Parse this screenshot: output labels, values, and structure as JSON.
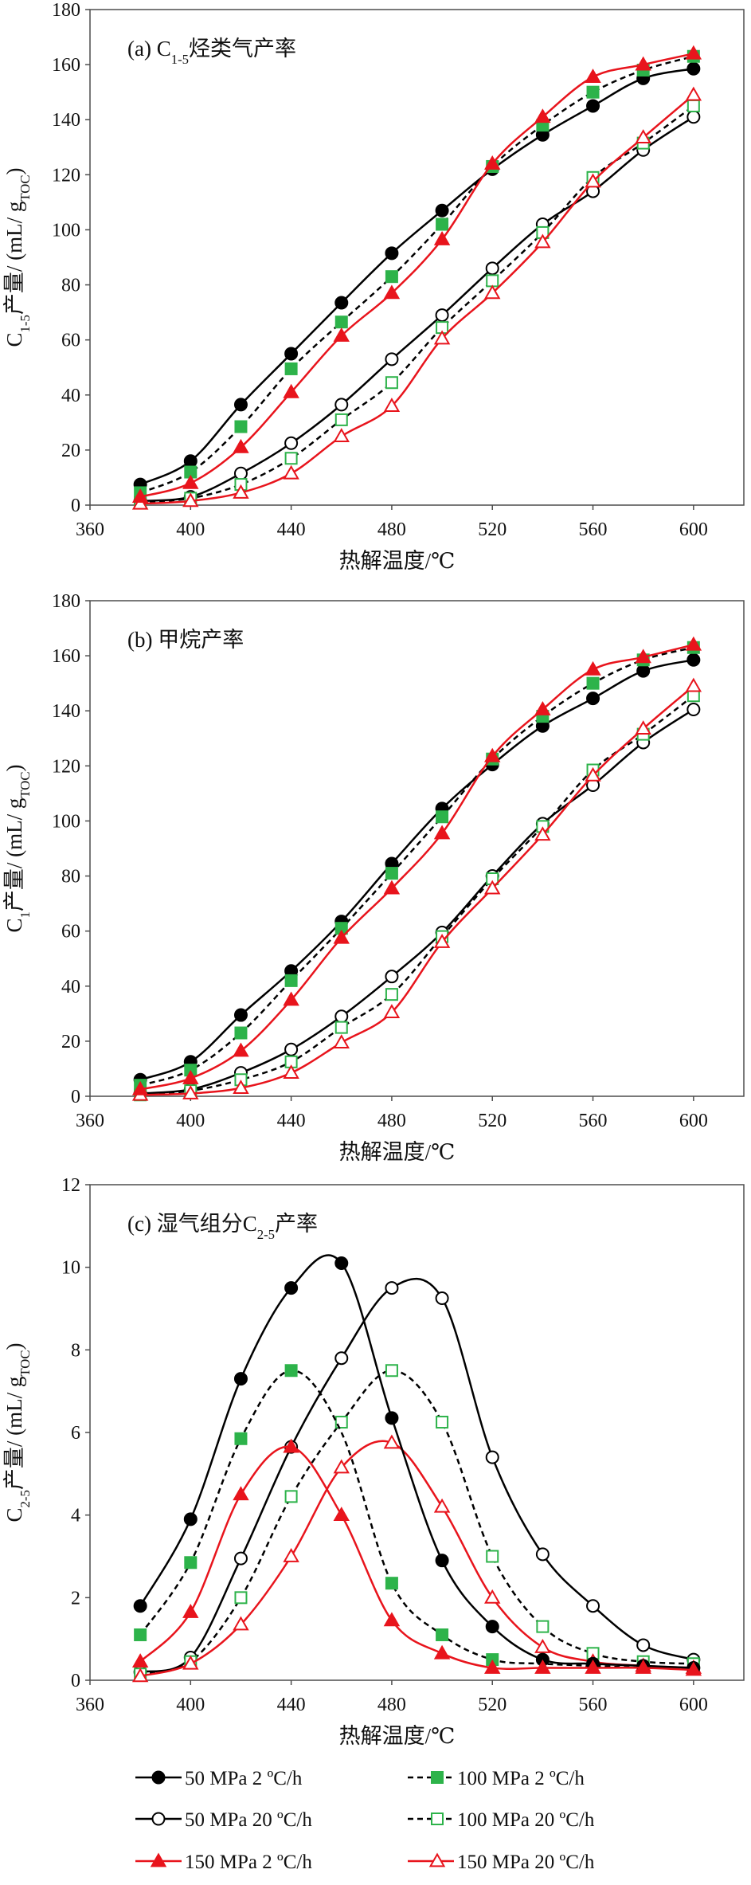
{
  "figure": {
    "legend": [
      {
        "label": "50 MPa 2 ºC/h",
        "color": "#000000",
        "marker": "circle",
        "filled": true,
        "dashed": false
      },
      {
        "label": "100 MPa 2 ºC/h",
        "color": "#2db34a",
        "marker": "square",
        "filled": true,
        "dashed": true
      },
      {
        "label": "50 MPa 20 ºC/h",
        "color": "#000000",
        "marker": "circle",
        "filled": false,
        "dashed": false
      },
      {
        "label": "100 MPa 20 ºC/h",
        "color": "#2db34a",
        "marker": "square",
        "filled": false,
        "dashed": true
      },
      {
        "label": "150 MPa 2 ºC/h",
        "color": "#e8141c",
        "marker": "triangle",
        "filled": true,
        "dashed": false
      },
      {
        "label": "150 MPa 20 ºC/h",
        "color": "#e8141c",
        "marker": "triangle",
        "filled": false,
        "dashed": false
      }
    ],
    "series_style": {
      "50 MPa 2 ºC/h": {
        "line": "#000000",
        "marker": "circle",
        "fill": "#000000",
        "dashed": false
      },
      "50 MPa 20 ºC/h": {
        "line": "#000000",
        "marker": "circle",
        "fill": "#ffffff",
        "dashed": false
      },
      "100 MPa 2 ºC/h": {
        "line": "#000000",
        "marker": "square",
        "fill": "#2db34a",
        "stroke": "#2db34a",
        "dashed": true
      },
      "100 MPa 20 ºC/h": {
        "line": "#000000",
        "marker": "square",
        "fill": "#ffffff",
        "stroke": "#2db34a",
        "dashed": true
      },
      "150 MPa 2 ºC/h": {
        "line": "#e8141c",
        "marker": "triangle",
        "fill": "#e8141c",
        "dashed": false
      },
      "150 MPa 20 ºC/h": {
        "line": "#e8141c",
        "marker": "triangle",
        "fill": "#ffffff",
        "stroke": "#e8141c",
        "dashed": false
      }
    }
  },
  "chart_data": [
    {
      "type": "line",
      "title": "(a)  C₁₋₅烃类气产率",
      "xlabel": "热解温度/℃",
      "ylabel": "C₁₋₅产量/ (mL/ g_TOC)",
      "xlim": [
        360,
        620
      ],
      "ylim": [
        0,
        180
      ],
      "xticks": [
        360,
        400,
        440,
        480,
        520,
        560,
        600
      ],
      "yticks": [
        0,
        20,
        40,
        60,
        80,
        100,
        120,
        140,
        160,
        180
      ],
      "x": [
        380,
        400,
        420,
        440,
        460,
        480,
        500,
        520,
        540,
        560,
        580,
        600
      ],
      "grid": false,
      "series": [
        {
          "name": "50 MPa 2 ºC/h",
          "values": [
            7.5,
            16,
            36.5,
            55,
            73.5,
            91.5,
            107,
            122,
            134.5,
            145,
            155,
            158.5
          ]
        },
        {
          "name": "100 MPa 2 ºC/h",
          "values": [
            4.5,
            12,
            28.5,
            49.5,
            66.5,
            83,
            102,
            123,
            138,
            150,
            158,
            163
          ]
        },
        {
          "name": "150 MPa 2 ºC/h",
          "values": [
            3,
            8,
            21,
            41,
            61.5,
            77,
            96.5,
            124,
            141,
            155.5,
            160,
            164
          ]
        },
        {
          "name": "50 MPa 20 ºC/h",
          "values": [
            1.5,
            3,
            11.5,
            22.5,
            36.5,
            53,
            69,
            86,
            102,
            114,
            129,
            141
          ]
        },
        {
          "name": "100 MPa 20 ºC/h",
          "values": [
            1,
            2.5,
            7.5,
            17,
            31,
            44.5,
            64.5,
            81.5,
            99,
            119,
            131.5,
            145
          ]
        },
        {
          "name": "150 MPa 20 ºC/h",
          "values": [
            0.5,
            1.5,
            4.5,
            11.5,
            25,
            36,
            60.5,
            77,
            95.5,
            117.5,
            133.5,
            149
          ]
        }
      ]
    },
    {
      "type": "line",
      "title": "(b)  甲烷产率",
      "xlabel": "热解温度/℃",
      "ylabel": "C₁产量/ (mL/ g_TOC)",
      "xlim": [
        360,
        620
      ],
      "ylim": [
        0,
        180
      ],
      "xticks": [
        360,
        400,
        440,
        480,
        520,
        560,
        600
      ],
      "yticks": [
        0,
        20,
        40,
        60,
        80,
        100,
        120,
        140,
        160,
        180
      ],
      "x": [
        380,
        400,
        420,
        440,
        460,
        480,
        500,
        520,
        540,
        560,
        580,
        600
      ],
      "grid": false,
      "series": [
        {
          "name": "50 MPa 2 ºC/h",
          "values": [
            6,
            12.5,
            29.5,
            45.5,
            63.5,
            84.5,
            104.5,
            120.5,
            134.5,
            144.5,
            154.5,
            158.5
          ]
        },
        {
          "name": "100 MPa 2 ºC/h",
          "values": [
            4,
            9.5,
            23,
            42,
            61,
            81,
            101.5,
            122.5,
            138,
            150,
            158.5,
            163
          ]
        },
        {
          "name": "150 MPa 2 ºC/h",
          "values": [
            2.5,
            6.5,
            16.5,
            35,
            57.5,
            75.5,
            95.5,
            123.5,
            140.5,
            155,
            159.5,
            164
          ]
        },
        {
          "name": "50 MPa 20 ºC/h",
          "values": [
            1,
            2.5,
            8.5,
            17,
            29,
            43.5,
            59.5,
            80,
            99,
            113,
            128.5,
            140.5
          ]
        },
        {
          "name": "100 MPa 20 ºC/h",
          "values": [
            0.5,
            2,
            6,
            12.5,
            25,
            37,
            58,
            79,
            98,
            118.5,
            131.5,
            145.5
          ]
        },
        {
          "name": "150 MPa 20 ºC/h",
          "values": [
            0.5,
            1,
            3,
            8.5,
            19.5,
            30.5,
            56,
            75.5,
            95,
            116.5,
            133.5,
            149
          ]
        }
      ]
    },
    {
      "type": "line",
      "title": "(c)  湿气组分C₂₋₅产率",
      "xlabel": "热解温度/℃",
      "ylabel": "C₂₋₅产量/ (mL/ g_TOC)",
      "xlim": [
        360,
        620
      ],
      "ylim": [
        0,
        12
      ],
      "xticks": [
        360,
        400,
        440,
        480,
        520,
        560,
        600
      ],
      "yticks": [
        0,
        2,
        4,
        6,
        8,
        10,
        12
      ],
      "x": [
        380,
        400,
        420,
        440,
        460,
        480,
        500,
        520,
        540,
        560,
        580,
        600
      ],
      "grid": false,
      "series": [
        {
          "name": "50 MPa 2 ºC/h",
          "values": [
            1.8,
            3.9,
            7.3,
            9.5,
            10.1,
            6.35,
            2.9,
            1.3,
            0.5,
            0.4,
            0.35,
            0.3
          ]
        },
        {
          "name": "100 MPa 2 ºC/h",
          "values": [
            1.1,
            2.85,
            5.85,
            7.5,
            null,
            2.35,
            1.1,
            0.5,
            null,
            null,
            null,
            null
          ]
        },
        {
          "name": "150 MPa 2 ºC/h",
          "values": [
            0.45,
            1.65,
            4.5,
            5.65,
            4.0,
            1.45,
            0.65,
            0.3,
            0.3,
            0.3,
            0.3,
            0.25
          ]
        },
        {
          "name": "50 MPa 20 ºC/h",
          "values": [
            0.2,
            0.55,
            2.95,
            5.65,
            7.8,
            9.5,
            9.25,
            5.4,
            3.05,
            1.8,
            0.85,
            0.5
          ]
        },
        {
          "name": "100 MPa 20 ºC/h",
          "values": [
            0.15,
            0.45,
            2.0,
            4.45,
            6.25,
            7.5,
            6.25,
            3.0,
            1.3,
            0.65,
            0.45,
            0.4
          ]
        },
        {
          "name": "150 MPa 20 ºC/h",
          "values": [
            0.1,
            0.4,
            1.35,
            3.0,
            5.15,
            5.75,
            4.2,
            2.0,
            0.8,
            0.45,
            0.35,
            0.3
          ]
        }
      ],
      "curves": [
        {
          "name": "50 MPa 2 ºC/h",
          "values": [
            1.8,
            3.9,
            7.3,
            9.5,
            10.1,
            6.35,
            2.9,
            1.3,
            0.5,
            0.4,
            0.35,
            0.3
          ]
        },
        {
          "name": "100 MPa 2 ºC/h",
          "values": [
            1.1,
            2.85,
            5.85,
            7.5,
            6.0,
            2.35,
            1.1,
            0.5,
            0.4,
            0.35,
            0.3,
            0.3
          ]
        },
        {
          "name": "150 MPa 2 ºC/h",
          "values": [
            0.45,
            1.65,
            4.5,
            5.65,
            4.0,
            1.45,
            0.65,
            0.3,
            0.3,
            0.3,
            0.3,
            0.25
          ]
        },
        {
          "name": "50 MPa 20 ºC/h",
          "values": [
            0.2,
            0.55,
            2.95,
            5.65,
            7.8,
            9.5,
            9.25,
            5.4,
            3.05,
            1.8,
            0.85,
            0.5
          ]
        },
        {
          "name": "100 MPa 20 ºC/h",
          "values": [
            0.15,
            0.45,
            2.0,
            4.45,
            6.25,
            7.5,
            6.25,
            3.0,
            1.3,
            0.65,
            0.45,
            0.4
          ]
        },
        {
          "name": "150 MPa 20 ºC/h",
          "values": [
            0.1,
            0.4,
            1.35,
            3.0,
            5.15,
            5.75,
            4.2,
            2.0,
            0.8,
            0.45,
            0.35,
            0.3
          ]
        }
      ]
    }
  ]
}
